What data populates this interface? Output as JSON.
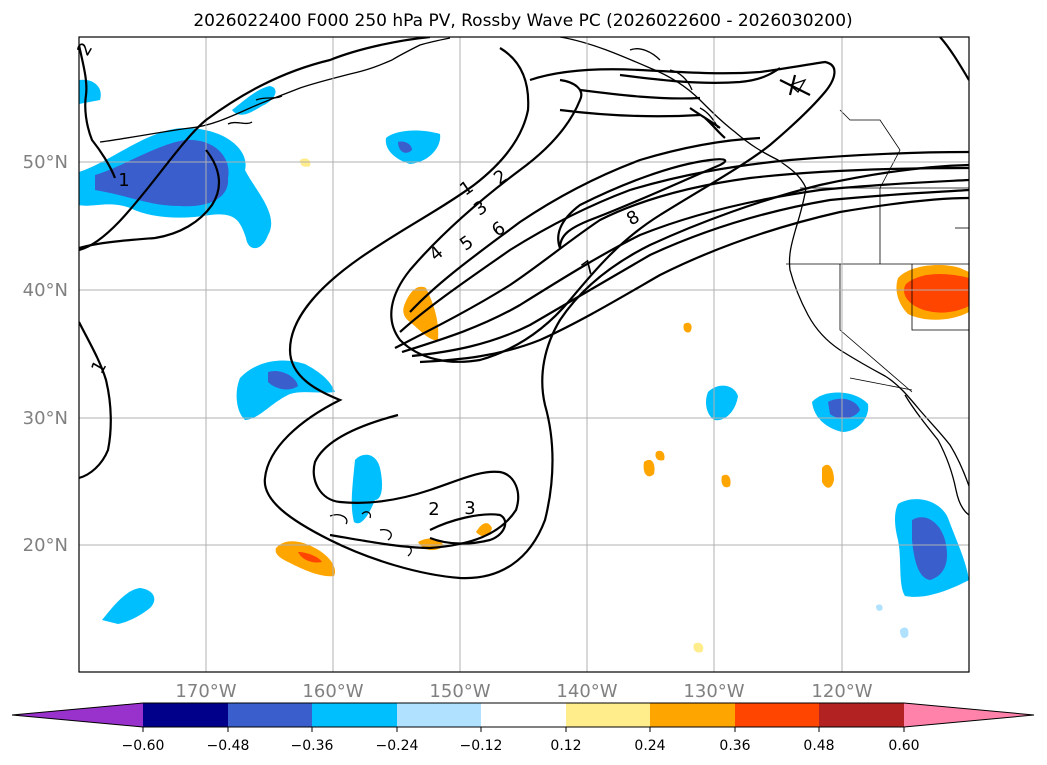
{
  "title": "2026022400 F000 250 hPa PV, Rossby Wave PC (2026022600 - 2026030200)",
  "map": {
    "lon_labels": [
      "170°W",
      "160°W",
      "150°W",
      "140°W",
      "130°W",
      "120°W"
    ],
    "lat_labels": [
      "50°N",
      "40°N",
      "30°N",
      "20°N"
    ],
    "contour_labels": [
      "1",
      "2",
      "1",
      "2",
      "3",
      "4",
      "5",
      "6",
      "7",
      "8",
      "2",
      "3",
      "1"
    ]
  },
  "colorbar": {
    "ticks": [
      "−0.60",
      "−0.48",
      "−0.36",
      "−0.24",
      "−0.12",
      "0.12",
      "0.24",
      "0.36",
      "0.48",
      "0.60"
    ],
    "colors": [
      "#9932cc",
      "#00008b",
      "#3a5fcd",
      "#00bfff",
      "#b0e2ff",
      "#ffffff",
      "#ffec8b",
      "#ffa500",
      "#ff4500",
      "#b22222",
      "#ff82ab"
    ]
  }
}
